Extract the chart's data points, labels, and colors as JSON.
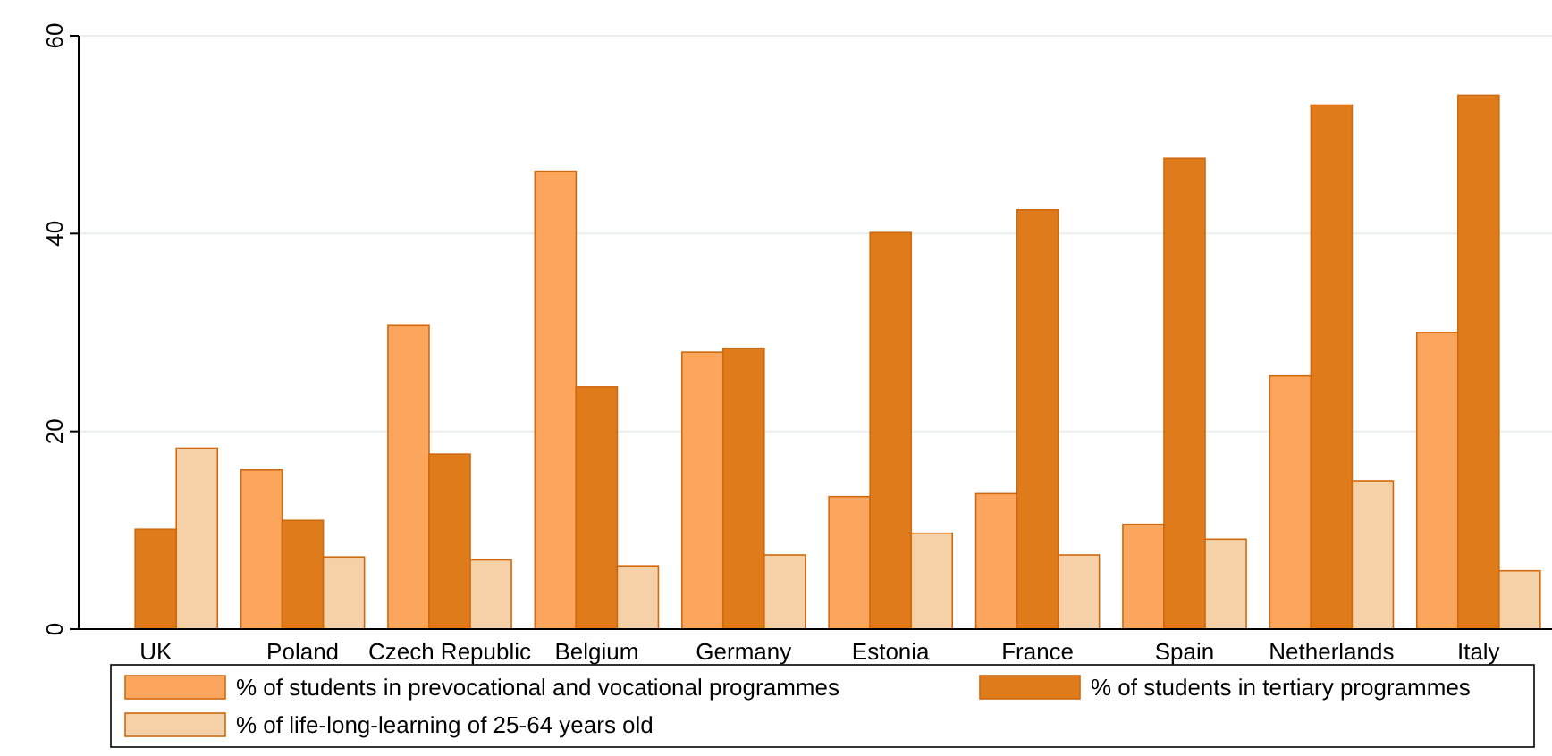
{
  "chart_data": {
    "type": "bar",
    "categories": [
      "UK",
      "Poland",
      "Czech Republic",
      "Belgium",
      "Germany",
      "Estonia",
      "France",
      "Spain",
      "Netherlands",
      "Italy"
    ],
    "series": [
      {
        "name": "% of students in prevocational and vocational programmes",
        "color": "#fba65c",
        "values": [
          null,
          16.1,
          30.7,
          46.3,
          28.0,
          13.4,
          13.7,
          10.6,
          25.6,
          30.0
        ]
      },
      {
        "name": "% of students in tertiary programmes",
        "color": "#e07b1c",
        "values": [
          10.1,
          11.0,
          17.7,
          24.5,
          28.4,
          40.1,
          42.4,
          47.6,
          53.0,
          54.0
        ]
      },
      {
        "name": "% of life-long-learning of 25-64 years old",
        "color": "#f6d0a6",
        "values": [
          18.3,
          7.3,
          7.0,
          6.4,
          7.5,
          9.7,
          7.5,
          9.1,
          15.0,
          5.9
        ]
      }
    ],
    "ylim": [
      0,
      60
    ],
    "yticks": [
      0,
      20,
      40,
      60
    ],
    "grid": "y",
    "legend": "bottom"
  }
}
